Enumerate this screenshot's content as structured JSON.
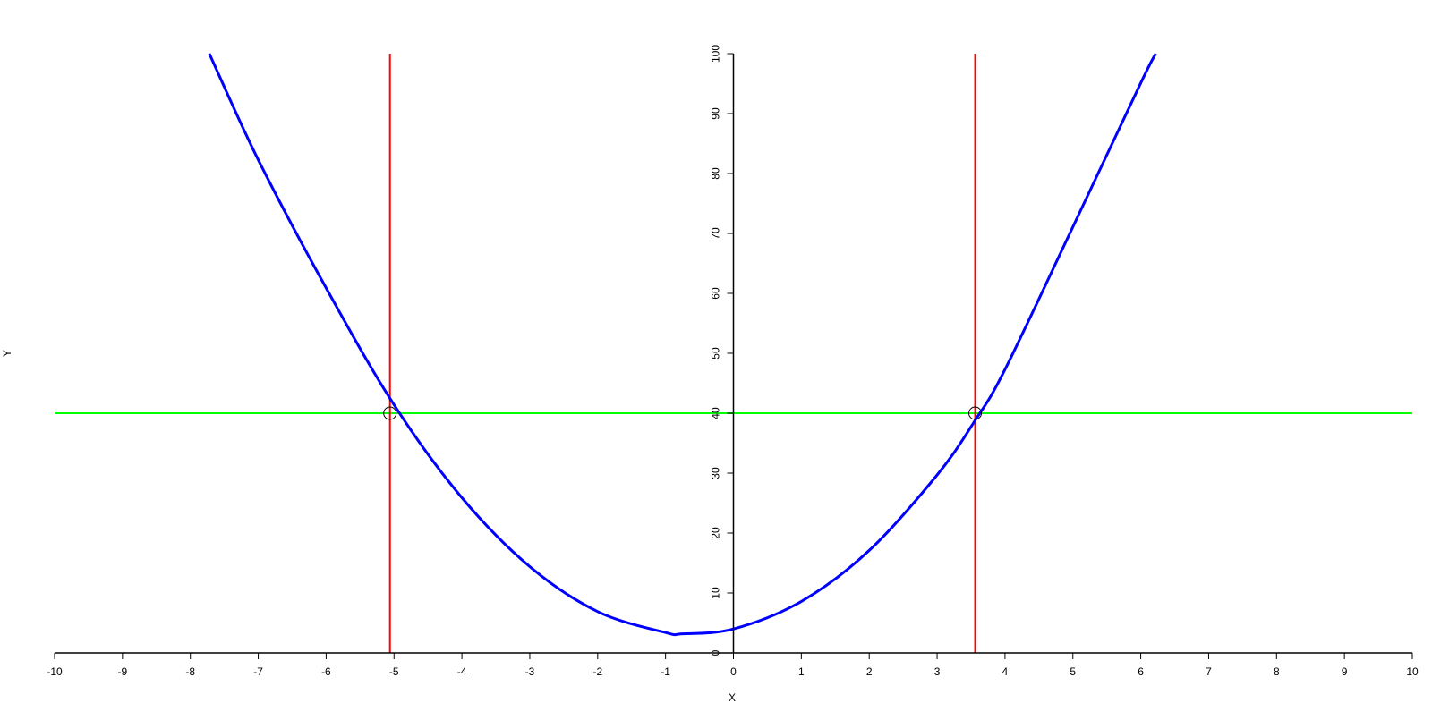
{
  "chart_data": {
    "type": "line",
    "title": "",
    "xlabel": "X",
    "ylabel": "Y",
    "xlim": [
      -10,
      10
    ],
    "ylim": [
      0,
      100
    ],
    "x_ticks": [
      "-10",
      "-9",
      "-8",
      "-7",
      "-6",
      "-5",
      "-4",
      "-3",
      "-2",
      "-1",
      "0",
      "1",
      "2",
      "3",
      "4",
      "5",
      "6",
      "7",
      "8",
      "9",
      "10"
    ],
    "y_ticks": [
      "0",
      "10",
      "20",
      "30",
      "40",
      "50",
      "60",
      "70",
      "80",
      "90",
      "100"
    ],
    "grid": false,
    "axes_through_origin": true,
    "series": [
      {
        "kind": "curve",
        "color": "#0000ff",
        "x": [
          -7.72,
          -7.0,
          -6.0,
          -5.0,
          -4.0,
          -3.0,
          -2.0,
          -1.0,
          -0.75,
          0.0,
          1.0,
          2.0,
          3.0,
          3.56,
          4.0,
          5.0,
          6.0,
          6.22
        ],
        "y": [
          100,
          82.3,
          60.9,
          41.4,
          25.9,
          14.4,
          6.9,
          3.4,
          3.2,
          4.0,
          8.6,
          17.1,
          29.7,
          38.8,
          47.3,
          71.1,
          95.1,
          100
        ]
      },
      {
        "kind": "horizontal-line",
        "color": "#00ff00",
        "y": 40
      },
      {
        "kind": "vertical-line",
        "color": "#ff0000",
        "x": -5.06
      },
      {
        "kind": "vertical-line",
        "color": "#ff0000",
        "x": 3.56
      }
    ],
    "markers": [
      {
        "shape": "open-circle",
        "color": "#000000",
        "x": -5.06,
        "y": 40
      },
      {
        "shape": "open-circle",
        "color": "#000000",
        "x": 3.56,
        "y": 40
      }
    ]
  }
}
